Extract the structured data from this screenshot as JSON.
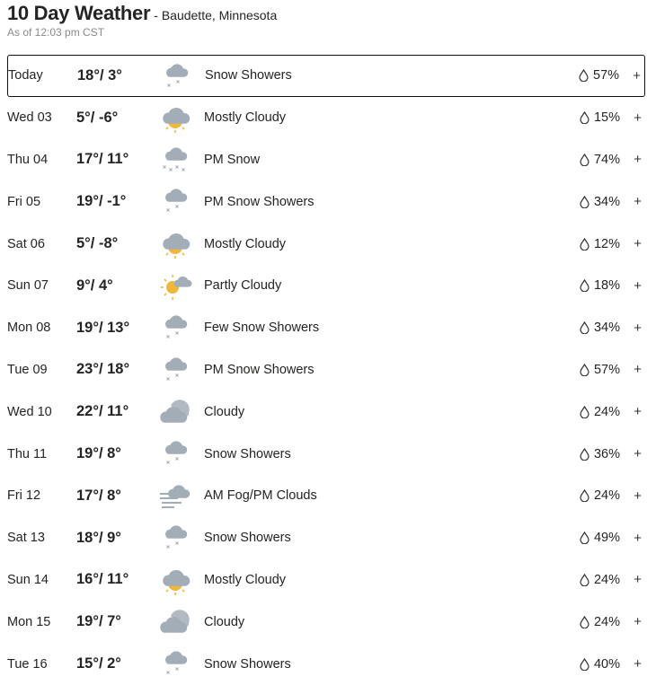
{
  "header": {
    "title": "10 Day Weather",
    "location": "- Baudette, Minnesota",
    "as_of": "As of 12:03 pm CST"
  },
  "colors": {
    "cloud": "#a3adb8",
    "sun": "#f0b73a",
    "selected_border": "#111111"
  },
  "days": [
    {
      "day": "Today",
      "temp": "18°/ 3°",
      "icon": "snow-showers",
      "condition": "Snow Showers",
      "precip": "57%"
    },
    {
      "day": "Wed 03",
      "temp": "5°/ -6°",
      "icon": "mostly-cloudy",
      "condition": "Mostly Cloudy",
      "precip": "15%"
    },
    {
      "day": "Thu 04",
      "temp": "17°/ 11°",
      "icon": "snow",
      "condition": "PM Snow",
      "precip": "74%"
    },
    {
      "day": "Fri 05",
      "temp": "19°/ -1°",
      "icon": "snow-showers",
      "condition": "PM Snow Showers",
      "precip": "34%"
    },
    {
      "day": "Sat 06",
      "temp": "5°/ -8°",
      "icon": "mostly-cloudy",
      "condition": "Mostly Cloudy",
      "precip": "12%"
    },
    {
      "day": "Sun 07",
      "temp": "9°/ 4°",
      "icon": "partly-cloudy",
      "condition": "Partly Cloudy",
      "precip": "18%"
    },
    {
      "day": "Mon 08",
      "temp": "19°/ 13°",
      "icon": "snow-showers",
      "condition": "Few Snow Showers",
      "precip": "34%"
    },
    {
      "day": "Tue 09",
      "temp": "23°/ 18°",
      "icon": "snow-showers",
      "condition": "PM Snow Showers",
      "precip": "57%"
    },
    {
      "day": "Wed 10",
      "temp": "22°/ 11°",
      "icon": "cloudy",
      "condition": "Cloudy",
      "precip": "24%"
    },
    {
      "day": "Thu 11",
      "temp": "19°/ 8°",
      "icon": "snow-showers",
      "condition": "Snow Showers",
      "precip": "36%"
    },
    {
      "day": "Fri 12",
      "temp": "17°/ 8°",
      "icon": "fog",
      "condition": "AM Fog/PM Clouds",
      "precip": "24%"
    },
    {
      "day": "Sat 13",
      "temp": "18°/ 9°",
      "icon": "snow-showers",
      "condition": "Snow Showers",
      "precip": "49%"
    },
    {
      "day": "Sun 14",
      "temp": "16°/ 11°",
      "icon": "mostly-cloudy",
      "condition": "Mostly Cloudy",
      "precip": "24%"
    },
    {
      "day": "Mon 15",
      "temp": "19°/ 7°",
      "icon": "cloudy",
      "condition": "Cloudy",
      "precip": "24%"
    },
    {
      "day": "Tue 16",
      "temp": "15°/ 2°",
      "icon": "snow-showers",
      "condition": "Snow Showers",
      "precip": "40%"
    }
  ],
  "expand_label": "+"
}
